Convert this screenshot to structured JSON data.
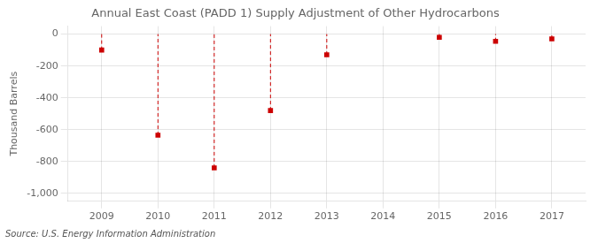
{
  "chart_data": {
    "type": "stem",
    "title": "Annual East Coast (PADD 1) Supply Adjustment of Other Hydrocarbons",
    "ylabel": "Thousand Barrels",
    "annotation": "Source: U.S. Energy Information Administration",
    "x": [
      2009,
      2010,
      2011,
      2012,
      2013,
      2015,
      2016,
      2017
    ],
    "values": [
      -100,
      -635,
      -840,
      -480,
      -130,
      -20,
      -45,
      -30
    ],
    "xlim": [
      2008.4,
      2017.6
    ],
    "ylim": [
      -1050,
      50
    ],
    "xticks": [
      2009,
      2010,
      2011,
      2012,
      2013,
      2014,
      2015,
      2016,
      2017
    ],
    "yticks": [
      0,
      -200,
      -400,
      -600,
      -800,
      {
        "value": -1000,
        "label": "-1,000"
      }
    ],
    "color": "#cc0000",
    "marker": "square",
    "line_style": "dashed",
    "grid": true
  }
}
